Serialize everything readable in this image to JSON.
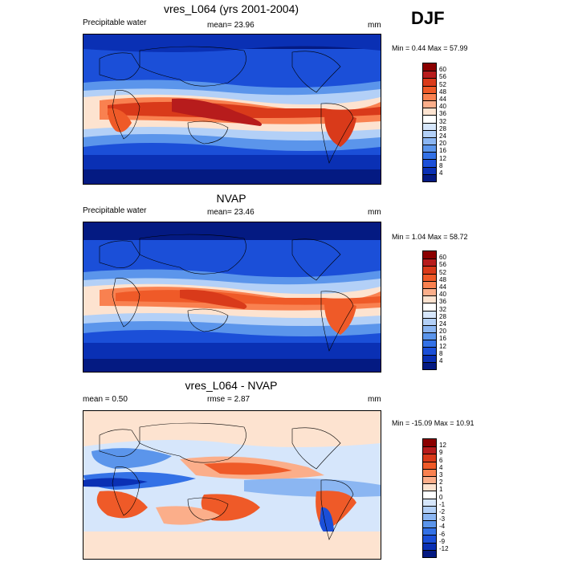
{
  "season": "DJF",
  "panels": [
    {
      "title": "vres_L064 (yrs 2001-2004)",
      "left_label": "Precipitable water",
      "center_label": "mean=  23.96",
      "units": "mm",
      "minmax": "Min =   0.44 Max =  57.99",
      "colorbar_labels": [
        "60",
        "56",
        "52",
        "48",
        "44",
        "40",
        "36",
        "32",
        "28",
        "24",
        "20",
        "16",
        "12",
        "8",
        "4"
      ],
      "colors": [
        "#8b0000",
        "#b71c1c",
        "#d93a1a",
        "#ef5a28",
        "#f98150",
        "#fbae8a",
        "#fde3d0",
        "#ffffff",
        "#d6e6fb",
        "#b3d0f7",
        "#8bb6f2",
        "#5b95eb",
        "#3371e6",
        "#1b4fd8",
        "#0a30b4",
        "#041a82"
      ]
    },
    {
      "title": "NVAP",
      "left_label": "Precipitable water",
      "center_label": "mean=  23.46",
      "units": "mm",
      "minmax": "Min =   1.04 Max =  58.72",
      "colorbar_labels": [
        "60",
        "56",
        "52",
        "48",
        "44",
        "40",
        "36",
        "32",
        "28",
        "24",
        "20",
        "16",
        "12",
        "8",
        "4"
      ],
      "colors": [
        "#8b0000",
        "#b71c1c",
        "#d93a1a",
        "#ef5a28",
        "#f98150",
        "#fbae8a",
        "#fde3d0",
        "#ffffff",
        "#d6e6fb",
        "#b3d0f7",
        "#8bb6f2",
        "#5b95eb",
        "#3371e6",
        "#1b4fd8",
        "#0a30b4",
        "#041a82"
      ]
    },
    {
      "title": "vres_L064 - NVAP",
      "left_label": "mean =   0.50",
      "center_label": "rmse =   2.87",
      "units": "mm",
      "minmax": "Min = -15.09 Max =  10.91",
      "colorbar_labels": [
        "12",
        "9",
        "6",
        "4",
        "3",
        "2",
        "1",
        "0",
        "-1",
        "-2",
        "-3",
        "-4",
        "-6",
        "-9",
        "-12"
      ],
      "colors": [
        "#8b0000",
        "#b71c1c",
        "#d93a1a",
        "#ef5a28",
        "#f98150",
        "#fbae8a",
        "#fde3d0",
        "#ffffff",
        "#d6e6fb",
        "#b3d0f7",
        "#8bb6f2",
        "#5b95eb",
        "#3371e6",
        "#1b4fd8",
        "#0a30b4",
        "#041a82"
      ]
    }
  ],
  "chart_data": [
    {
      "type": "heatmap",
      "title": "vres_L064 (yrs 2001-2004)",
      "variable": "Precipitable water",
      "units": "mm",
      "mean": 23.96,
      "min": 0.44,
      "max": 57.99,
      "contour_levels": [
        4,
        8,
        12,
        16,
        20,
        24,
        28,
        32,
        36,
        40,
        44,
        48,
        52,
        56,
        60
      ],
      "season": "DJF"
    },
    {
      "type": "heatmap",
      "title": "NVAP",
      "variable": "Precipitable water",
      "units": "mm",
      "mean": 23.46,
      "min": 1.04,
      "max": 58.72,
      "contour_levels": [
        4,
        8,
        12,
        16,
        20,
        24,
        28,
        32,
        36,
        40,
        44,
        48,
        52,
        56,
        60
      ],
      "season": "DJF"
    },
    {
      "type": "heatmap",
      "title": "vres_L064 - NVAP",
      "units": "mm",
      "mean": 0.5,
      "rmse": 2.87,
      "min": -15.09,
      "max": 10.91,
      "contour_levels": [
        -12,
        -9,
        -6,
        -4,
        -3,
        -2,
        -1,
        0,
        1,
        2,
        3,
        4,
        6,
        9,
        12
      ],
      "season": "DJF"
    }
  ]
}
